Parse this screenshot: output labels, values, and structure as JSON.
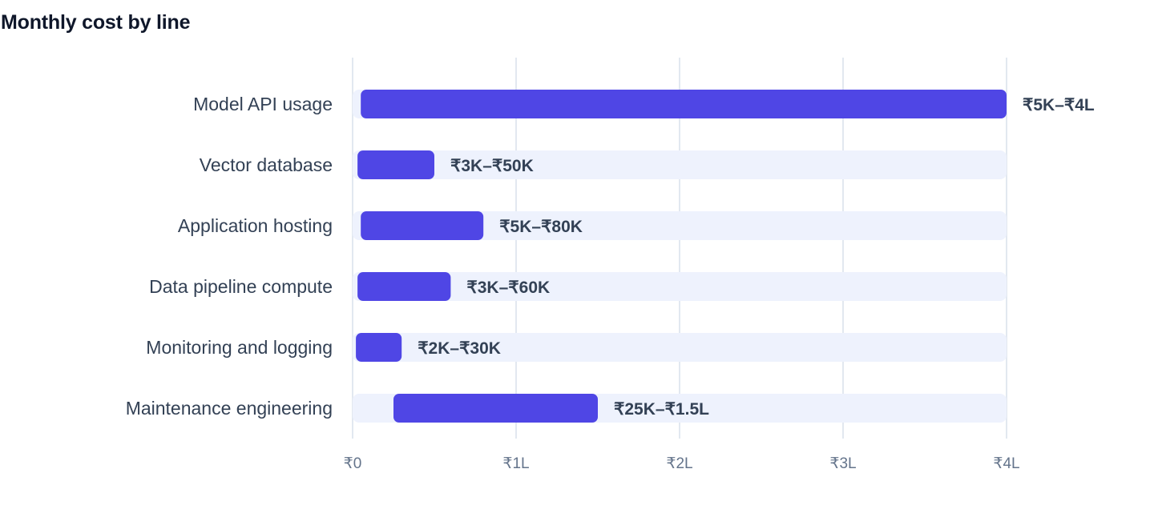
{
  "chart_data": {
    "type": "bar",
    "subtype": "floating-range-horizontal",
    "title": "Monthly cost by line",
    "xlabel": "",
    "ylabel": "",
    "xlim": [
      0,
      400000
    ],
    "grid": true,
    "legend": "none",
    "categories": [
      "Model API usage",
      "Vector database",
      "Application hosting",
      "Data pipeline compute",
      "Monitoring and logging",
      "Maintenance engineering"
    ],
    "series": [
      {
        "low": [
          5000,
          3000,
          5000,
          3000,
          2000,
          25000
        ],
        "high": [
          400000,
          50000,
          80000,
          60000,
          30000,
          150000
        ],
        "labels": [
          "₹5K–₹4L",
          "₹3K–₹50K",
          "₹5K–₹80K",
          "₹3K–₹60K",
          "₹2K–₹30K",
          "₹25K–₹1.5L"
        ]
      }
    ],
    "ticks": [
      {
        "value": 0,
        "label": "₹0"
      },
      {
        "value": 100000,
        "label": "₹1L"
      },
      {
        "value": 200000,
        "label": "₹2L"
      },
      {
        "value": 300000,
        "label": "₹3L"
      },
      {
        "value": 400000,
        "label": "₹4L"
      }
    ],
    "colors": {
      "bar": "#4f46e5",
      "track": "#eef2fd",
      "grid": "#e2e8f0"
    }
  }
}
